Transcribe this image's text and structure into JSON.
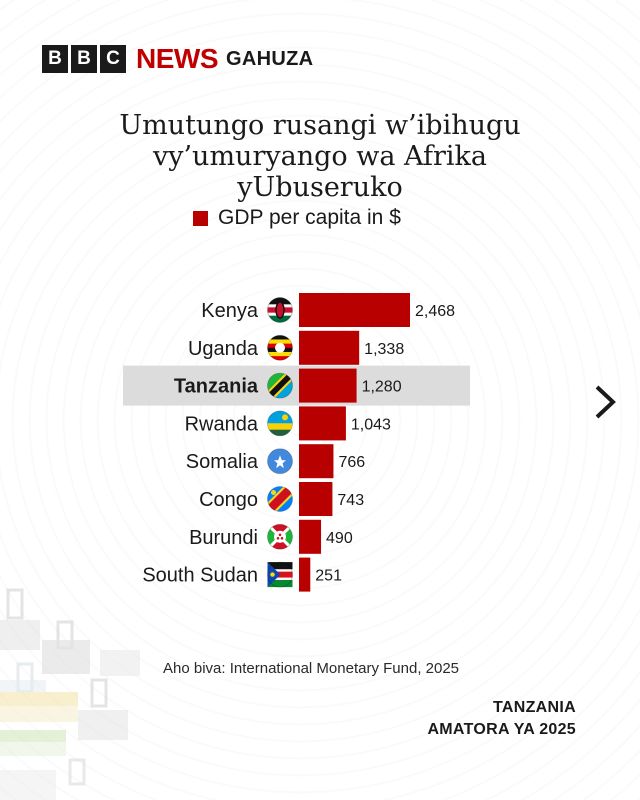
{
  "brand": {
    "bbc_letters": [
      "B",
      "B",
      "C"
    ],
    "news": "NEWS",
    "service": "GAHUZA",
    "colors": {
      "news_red": "#c00000",
      "box": "#1a1a1a"
    }
  },
  "chart_data": {
    "type": "bar",
    "orientation": "horizontal",
    "title_lines": [
      "Umutungo rusangi w’ibihugu",
      "vy’umuryango wa Afrika",
      "yUbuseruko"
    ],
    "legend": "GDP per capita in $",
    "categories": [
      "Kenya",
      "Uganda",
      "Tanzania",
      "Rwanda",
      "Somalia",
      "Congo",
      "Burundi",
      "South Sudan"
    ],
    "values": [
      2468,
      1338,
      1280,
      1043,
      766,
      743,
      490,
      251
    ],
    "value_labels": [
      "2,468",
      "1,338",
      "1,280",
      "1,043",
      "766",
      "743",
      "490",
      "251"
    ],
    "highlight": "Tanzania",
    "bar_color": "#b80000",
    "highlight_band_color": "#dcdcdc",
    "flag_icons": [
      "kenya-flag-icon",
      "uganda-flag-icon",
      "tanzania-flag-icon",
      "rwanda-flag-icon",
      "somalia-flag-icon",
      "congo-flag-icon",
      "burundi-flag-icon",
      "south-sudan-flag-icon"
    ],
    "xlim": [
      0,
      2500
    ]
  },
  "source": "Aho biva: International Monetary Fund, 2025",
  "footer": {
    "line1": "TANZANIA",
    "line2": "AMATORA YA 2025"
  },
  "nav": {
    "next_icon": "chevron-right-icon"
  }
}
